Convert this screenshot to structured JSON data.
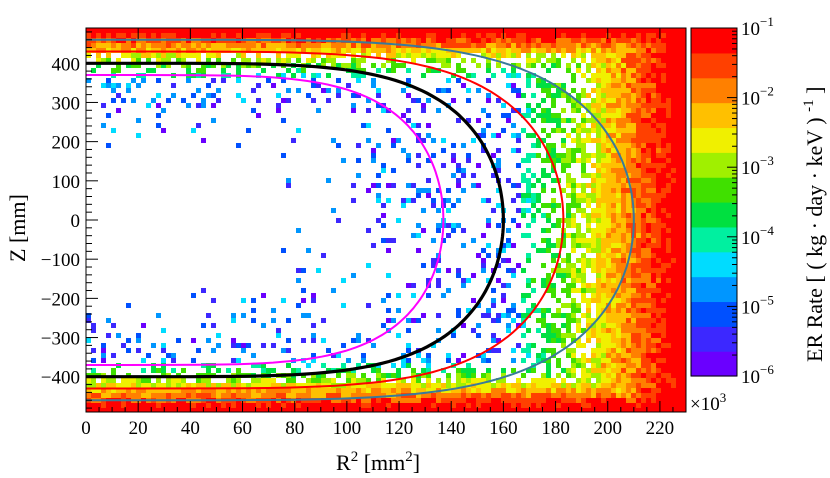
{
  "chart_data": {
    "type": "heatmap",
    "title": "",
    "xlabel": "R² [mm²]",
    "xlabel_parts": [
      "R",
      "2",
      " [mm",
      "2",
      "]"
    ],
    "ylabel": "Z [mm]",
    "xlim": [
      0,
      230
    ],
    "ylim": [
      -490,
      490
    ],
    "x_multiplier": "×10³",
    "x_multiplier_parts": [
      "×10",
      "3"
    ],
    "x_ticks": [
      0,
      20,
      40,
      60,
      80,
      100,
      120,
      140,
      160,
      180,
      200,
      220
    ],
    "y_ticks": [
      400,
      300,
      200,
      100,
      0,
      -100,
      -200,
      -300,
      -400
    ],
    "colorbar": {
      "title": "ER Rate [ ( kg · day · keV ) -1 ]",
      "title_parts": [
        "ER Rate [ ( kg · day · keV ) ",
        "-1",
        " ]"
      ],
      "scale": "log",
      "range": [
        1e-06,
        0.1
      ],
      "tick_labels": [
        {
          "value": 0.1,
          "base": "10",
          "exp": "-1"
        },
        {
          "value": 0.01,
          "base": "10",
          "exp": "-2"
        },
        {
          "value": 0.001,
          "base": "10",
          "exp": "-3"
        },
        {
          "value": 0.0001,
          "base": "10",
          "exp": "-4"
        },
        {
          "value": 1e-05,
          "base": "10",
          "exp": "-5"
        },
        {
          "value": 1e-06,
          "base": "10",
          "exp": "-6"
        }
      ],
      "colors": [
        "#6a00ff",
        "#3c28ff",
        "#0050ff",
        "#0096ff",
        "#00dcff",
        "#00f0a0",
        "#00e040",
        "#40e000",
        "#a0f000",
        "#f0f000",
        "#ffc000",
        "#ff8000",
        "#ff4000",
        "#ff0000"
      ]
    },
    "curves": [
      {
        "color": "#ff00ff",
        "z_max": 370,
        "r2_max": 137
      },
      {
        "color": "#000000",
        "z_max": 400,
        "r2_max": 160
      },
      {
        "color": "#ff0000",
        "z_max": 430,
        "r2_max": 183
      },
      {
        "color": "#3a7a9a",
        "z_max": 460,
        "r2_max": 210
      }
    ]
  }
}
